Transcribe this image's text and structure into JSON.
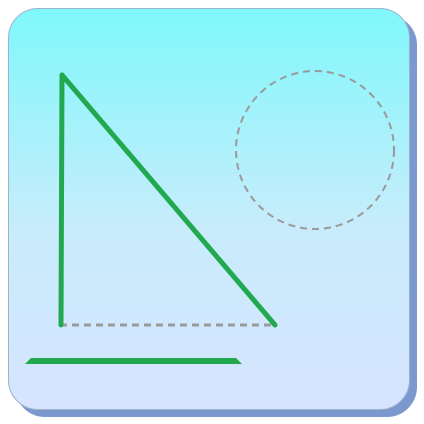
{
  "icon": {
    "name": "geometry-triangle-app-icon",
    "colors": {
      "background_top": "#7ff8fb",
      "background_bottom": "#d6e4ff",
      "shadow": "#7b98cf",
      "triangle_stroke": "#22a84f",
      "dashed_stroke": "#9a9a9a",
      "ground_line": "#22a84f"
    }
  }
}
